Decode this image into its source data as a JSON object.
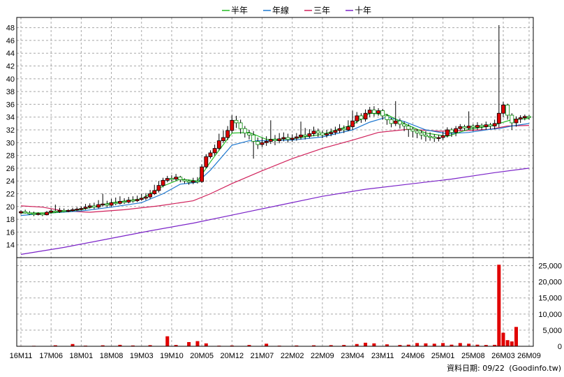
{
  "chart_data": {
    "type": "line",
    "legend": [
      {
        "name": "半年",
        "color": "#22bb22"
      },
      {
        "name": "年線",
        "color": "#1e78d0"
      },
      {
        "name": "三年",
        "color": "#d0205a"
      },
      {
        "name": "十年",
        "color": "#7a22c8"
      }
    ],
    "price_axis": {
      "ticks": [
        14,
        16,
        18,
        20,
        22,
        24,
        26,
        28,
        30,
        32,
        34,
        36,
        38,
        40,
        42,
        44,
        46,
        48
      ],
      "range": [
        12,
        49.6
      ]
    },
    "volume_axis": {
      "ticks": [
        "0",
        "5,000",
        "10,000",
        "15,000",
        "20,000",
        "25,000"
      ],
      "values": [
        0,
        5000,
        10000,
        15000,
        20000,
        25000
      ],
      "range": [
        0,
        27500
      ]
    },
    "x_labels": [
      "16M11",
      "17M06",
      "18M01",
      "18M08",
      "19M03",
      "19M10",
      "20M05",
      "20M12",
      "21M07",
      "22M02",
      "22M09",
      "23M04",
      "23M11",
      "24M06",
      "25M01",
      "25M08",
      "26M03",
      "26M09"
    ],
    "x_label_index": [
      0,
      7,
      14,
      21,
      28,
      35,
      42,
      49,
      56,
      63,
      70,
      77,
      84,
      91,
      98,
      105,
      112,
      118
    ],
    "candles": [
      [
        0,
        19.0,
        19.2,
        19.4,
        18.8
      ],
      [
        1,
        19.2,
        19.0,
        19.5,
        18.9
      ],
      [
        2,
        19.0,
        18.9,
        19.3,
        18.7
      ],
      [
        3,
        18.9,
        18.8,
        19.2,
        18.5
      ],
      [
        4,
        18.8,
        18.9,
        19.1,
        18.6
      ],
      [
        5,
        18.9,
        18.7,
        19.0,
        18.5
      ],
      [
        6,
        18.7,
        19.1,
        19.3,
        18.6
      ],
      [
        7,
        19.1,
        19.3,
        19.6,
        18.9
      ],
      [
        8,
        19.3,
        19.2,
        20.3,
        19.0
      ],
      [
        9,
        19.2,
        19.4,
        19.8,
        19.0
      ],
      [
        10,
        19.4,
        19.3,
        19.7,
        19.1
      ],
      [
        11,
        19.3,
        19.4,
        19.6,
        19.1
      ],
      [
        12,
        19.4,
        19.5,
        19.8,
        19.2
      ],
      [
        13,
        19.5,
        19.6,
        19.9,
        19.3
      ],
      [
        14,
        19.6,
        19.7,
        20.0,
        19.4
      ],
      [
        15,
        19.7,
        19.9,
        20.4,
        19.5
      ],
      [
        16,
        19.9,
        20.1,
        20.5,
        19.7
      ],
      [
        17,
        20.1,
        19.9,
        20.6,
        19.6
      ],
      [
        18,
        19.9,
        20.3,
        21.0,
        19.7
      ],
      [
        19,
        20.3,
        20.4,
        22.0,
        20.0
      ],
      [
        20,
        20.4,
        20.2,
        20.9,
        19.9
      ],
      [
        21,
        20.2,
        20.6,
        21.2,
        20.0
      ],
      [
        22,
        20.6,
        20.5,
        21.4,
        20.2
      ],
      [
        23,
        20.5,
        20.8,
        21.6,
        20.3
      ],
      [
        24,
        20.8,
        20.7,
        21.3,
        20.4
      ],
      [
        25,
        20.7,
        21.0,
        21.5,
        20.5
      ],
      [
        26,
        21.0,
        20.9,
        21.6,
        20.6
      ],
      [
        27,
        20.9,
        21.1,
        21.7,
        20.7
      ],
      [
        28,
        21.1,
        21.3,
        22.0,
        20.9
      ],
      [
        29,
        21.3,
        21.5,
        22.1,
        21.0
      ],
      [
        30,
        21.5,
        22.0,
        22.6,
        21.2
      ],
      [
        31,
        22.0,
        22.5,
        23.4,
        21.8
      ],
      [
        32,
        22.5,
        23.3,
        24.0,
        22.2
      ],
      [
        33,
        23.3,
        24.1,
        24.5,
        23.0
      ],
      [
        34,
        24.1,
        24.4,
        24.8,
        23.8
      ],
      [
        35,
        24.4,
        24.3,
        24.9,
        23.9
      ],
      [
        36,
        24.3,
        24.6,
        25.1,
        24.0
      ],
      [
        37,
        24.6,
        24.2,
        24.8,
        23.8
      ],
      [
        38,
        24.2,
        24.0,
        24.4,
        23.6
      ],
      [
        39,
        24.0,
        23.8,
        24.2,
        23.4
      ],
      [
        40,
        23.8,
        24.0,
        24.5,
        23.5
      ],
      [
        41,
        24.0,
        23.9,
        24.6,
        23.6
      ],
      [
        42,
        23.9,
        26.2,
        26.6,
        23.7
      ],
      [
        43,
        26.2,
        27.8,
        28.2,
        26.0
      ],
      [
        44,
        27.8,
        28.4,
        28.8,
        27.5
      ],
      [
        45,
        28.4,
        29.1,
        29.7,
        28.0
      ],
      [
        46,
        29.1,
        30.3,
        31.4,
        28.8
      ],
      [
        47,
        30.3,
        30.8,
        31.9,
        30.0
      ],
      [
        48,
        30.8,
        31.9,
        32.6,
        30.4
      ],
      [
        49,
        31.9,
        33.5,
        34.3,
        31.5
      ],
      [
        50,
        33.5,
        33.1,
        34.2,
        32.3
      ],
      [
        51,
        33.1,
        32.2,
        33.6,
        31.4
      ],
      [
        52,
        32.2,
        31.5,
        32.6,
        30.8
      ],
      [
        53,
        31.5,
        31.2,
        32.0,
        30.5
      ],
      [
        54,
        31.2,
        30.2,
        31.8,
        27.5
      ],
      [
        55,
        30.2,
        29.7,
        30.8,
        29.0
      ],
      [
        56,
        29.7,
        30.0,
        30.8,
        29.3
      ],
      [
        57,
        30.0,
        30.2,
        31.0,
        29.5
      ],
      [
        58,
        30.2,
        30.5,
        33.5,
        29.8
      ],
      [
        59,
        30.5,
        30.3,
        31.2,
        29.6
      ],
      [
        60,
        30.3,
        30.6,
        31.5,
        29.9
      ],
      [
        61,
        30.6,
        30.8,
        31.6,
        30.2
      ],
      [
        62,
        30.8,
        30.5,
        31.4,
        30.0
      ],
      [
        63,
        30.5,
        30.7,
        31.3,
        30.1
      ],
      [
        64,
        30.7,
        30.9,
        31.5,
        30.3
      ],
      [
        65,
        30.9,
        31.2,
        33.3,
        30.5
      ],
      [
        66,
        31.2,
        31.0,
        32.3,
        30.5
      ],
      [
        67,
        31.0,
        31.4,
        32.1,
        30.7
      ],
      [
        68,
        31.4,
        31.8,
        32.5,
        31.0
      ],
      [
        69,
        31.8,
        31.5,
        32.2,
        30.9
      ],
      [
        70,
        31.5,
        31.2,
        31.9,
        30.7
      ],
      [
        71,
        31.2,
        31.4,
        32.0,
        30.8
      ],
      [
        72,
        31.4,
        31.6,
        32.2,
        31.0
      ],
      [
        73,
        31.6,
        31.9,
        32.5,
        31.2
      ],
      [
        74,
        31.9,
        32.2,
        32.9,
        31.5
      ],
      [
        75,
        32.2,
        32.0,
        32.7,
        31.5
      ],
      [
        76,
        32.0,
        32.5,
        33.5,
        31.8
      ],
      [
        77,
        32.5,
        33.4,
        35.0,
        32.0
      ],
      [
        78,
        33.4,
        34.2,
        34.8,
        33.0
      ],
      [
        79,
        34.2,
        33.7,
        34.6,
        33.1
      ],
      [
        80,
        33.7,
        34.6,
        35.2,
        33.3
      ],
      [
        81,
        34.6,
        35.1,
        35.6,
        34.0
      ],
      [
        82,
        35.1,
        34.6,
        35.7,
        34.1
      ],
      [
        83,
        34.6,
        35.0,
        35.4,
        34.2
      ],
      [
        84,
        35.0,
        34.2,
        35.3,
        33.6
      ],
      [
        85,
        34.2,
        33.6,
        34.5,
        32.8
      ],
      [
        86,
        33.6,
        33.0,
        33.9,
        32.4
      ],
      [
        87,
        33.0,
        33.4,
        36.5,
        32.6
      ],
      [
        88,
        33.4,
        32.9,
        33.8,
        32.2
      ],
      [
        89,
        32.9,
        32.6,
        33.3,
        31.8
      ],
      [
        90,
        32.6,
        32.1,
        32.9,
        30.9
      ],
      [
        91,
        32.1,
        31.8,
        32.4,
        30.8
      ],
      [
        92,
        31.8,
        31.5,
        32.1,
        30.7
      ],
      [
        93,
        31.5,
        31.2,
        31.9,
        30.5
      ],
      [
        94,
        31.2,
        31.0,
        31.8,
        30.2
      ],
      [
        95,
        31.0,
        30.9,
        31.6,
        30.3
      ],
      [
        96,
        30.9,
        30.7,
        31.3,
        30.1
      ],
      [
        97,
        30.7,
        30.8,
        31.2,
        30.2
      ],
      [
        98,
        30.8,
        31.1,
        31.7,
        30.4
      ],
      [
        99,
        31.1,
        32.0,
        32.4,
        30.8
      ],
      [
        100,
        32.0,
        31.6,
        32.3,
        30.9
      ],
      [
        101,
        31.6,
        32.2,
        32.6,
        31.0
      ],
      [
        102,
        32.2,
        32.5,
        32.9,
        31.9
      ],
      [
        103,
        32.5,
        32.3,
        32.8,
        31.9
      ],
      [
        104,
        32.3,
        32.6,
        34.9,
        32.0
      ],
      [
        105,
        32.6,
        32.4,
        32.9,
        31.8
      ],
      [
        106,
        32.4,
        32.7,
        33.2,
        32.0
      ],
      [
        107,
        32.7,
        32.5,
        33.0,
        32.0
      ],
      [
        108,
        32.5,
        32.8,
        33.3,
        32.0
      ],
      [
        109,
        32.8,
        32.6,
        33.1,
        32.1
      ],
      [
        110,
        32.6,
        33.0,
        33.6,
        32.1
      ],
      [
        111,
        33.0,
        34.6,
        48.4,
        32.4
      ],
      [
        112,
        34.6,
        35.9,
        36.4,
        34.0
      ],
      [
        113,
        35.9,
        34.3,
        36.1,
        33.6
      ],
      [
        114,
        34.3,
        33.1,
        34.6,
        32.0
      ],
      [
        115,
        33.1,
        33.7,
        34.1,
        32.5
      ],
      [
        116,
        33.7,
        33.9,
        34.3,
        33.1
      ],
      [
        117,
        33.9,
        34.1,
        34.4,
        33.5
      ],
      [
        118,
        34.1,
        34.0,
        34.3,
        33.6
      ]
    ],
    "volume": [
      [
        0,
        120
      ],
      [
        3,
        150
      ],
      [
        8,
        300
      ],
      [
        12,
        700
      ],
      [
        15,
        200
      ],
      [
        19,
        300
      ],
      [
        23,
        450
      ],
      [
        26,
        250
      ],
      [
        30,
        350
      ],
      [
        34,
        3100
      ],
      [
        36,
        400
      ],
      [
        39,
        1300
      ],
      [
        41,
        1600
      ],
      [
        43,
        900
      ],
      [
        46,
        200
      ],
      [
        49,
        250
      ],
      [
        53,
        400
      ],
      [
        57,
        800
      ],
      [
        60,
        200
      ],
      [
        64,
        250
      ],
      [
        68,
        300
      ],
      [
        72,
        350
      ],
      [
        75,
        400
      ],
      [
        78,
        700
      ],
      [
        80,
        1100
      ],
      [
        82,
        900
      ],
      [
        85,
        600
      ],
      [
        88,
        400
      ],
      [
        90,
        500
      ],
      [
        92,
        1000
      ],
      [
        94,
        900
      ],
      [
        96,
        800
      ],
      [
        98,
        1000
      ],
      [
        100,
        500
      ],
      [
        102,
        1000
      ],
      [
        104,
        800
      ],
      [
        106,
        500
      ],
      [
        108,
        400
      ],
      [
        110,
        450
      ],
      [
        111,
        25300
      ],
      [
        112,
        4200
      ],
      [
        113,
        1900
      ],
      [
        114,
        1500
      ],
      [
        115,
        6000
      ]
    ],
    "ma_half": [
      [
        0,
        19.0
      ],
      [
        7,
        19.0
      ],
      [
        14,
        19.5
      ],
      [
        21,
        20.6
      ],
      [
        28,
        21.2
      ],
      [
        33,
        23.2
      ],
      [
        37,
        24.3
      ],
      [
        41,
        24.0
      ],
      [
        44,
        27.0
      ],
      [
        49,
        31.5
      ],
      [
        53,
        31.6
      ],
      [
        57,
        30.5
      ],
      [
        63,
        30.6
      ],
      [
        70,
        31.3
      ],
      [
        77,
        32.8
      ],
      [
        81,
        34.6
      ],
      [
        85,
        34.4
      ],
      [
        89,
        33.0
      ],
      [
        94,
        31.5
      ],
      [
        99,
        31.0
      ],
      [
        104,
        32.1
      ],
      [
        109,
        32.6
      ],
      [
        111,
        33.0
      ],
      [
        114,
        33.6
      ],
      [
        118,
        33.8
      ]
    ],
    "ma_year": [
      [
        0,
        18.6
      ],
      [
        7,
        19.0
      ],
      [
        14,
        19.3
      ],
      [
        21,
        19.9
      ],
      [
        28,
        20.6
      ],
      [
        33,
        22.0
      ],
      [
        37,
        23.5
      ],
      [
        41,
        23.8
      ],
      [
        44,
        25.7
      ],
      [
        49,
        29.6
      ],
      [
        53,
        30.3
      ],
      [
        57,
        30.3
      ],
      [
        63,
        30.4
      ],
      [
        70,
        30.9
      ],
      [
        77,
        32.0
      ],
      [
        81,
        33.2
      ],
      [
        85,
        34.0
      ],
      [
        89,
        33.3
      ],
      [
        94,
        32.0
      ],
      [
        99,
        31.4
      ],
      [
        104,
        31.6
      ],
      [
        109,
        32.1
      ],
      [
        111,
        32.2
      ],
      [
        114,
        32.6
      ],
      [
        118,
        33.0
      ]
    ],
    "ma_three": [
      [
        0,
        20.1
      ],
      [
        5,
        19.9
      ],
      [
        10,
        19.3
      ],
      [
        16,
        19.1
      ],
      [
        24,
        19.5
      ],
      [
        32,
        20.1
      ],
      [
        40,
        20.9
      ],
      [
        44,
        22.0
      ],
      [
        49,
        23.6
      ],
      [
        56,
        25.6
      ],
      [
        63,
        27.5
      ],
      [
        70,
        29.1
      ],
      [
        77,
        30.4
      ],
      [
        83,
        31.6
      ],
      [
        90,
        32.1
      ],
      [
        97,
        31.8
      ],
      [
        104,
        31.9
      ],
      [
        109,
        32.1
      ],
      [
        113,
        32.6
      ],
      [
        118,
        32.7
      ]
    ],
    "ma_ten": [
      [
        0,
        12.5
      ],
      [
        10,
        13.6
      ],
      [
        20,
        14.9
      ],
      [
        30,
        16.2
      ],
      [
        40,
        17.4
      ],
      [
        50,
        18.8
      ],
      [
        60,
        20.2
      ],
      [
        70,
        21.6
      ],
      [
        80,
        22.7
      ],
      [
        90,
        23.5
      ],
      [
        100,
        24.3
      ],
      [
        110,
        25.3
      ],
      [
        118,
        26.0
      ]
    ]
  },
  "footer": {
    "date_label": "資料日期: 09/22",
    "source": "(Goodinfo.tw)"
  }
}
